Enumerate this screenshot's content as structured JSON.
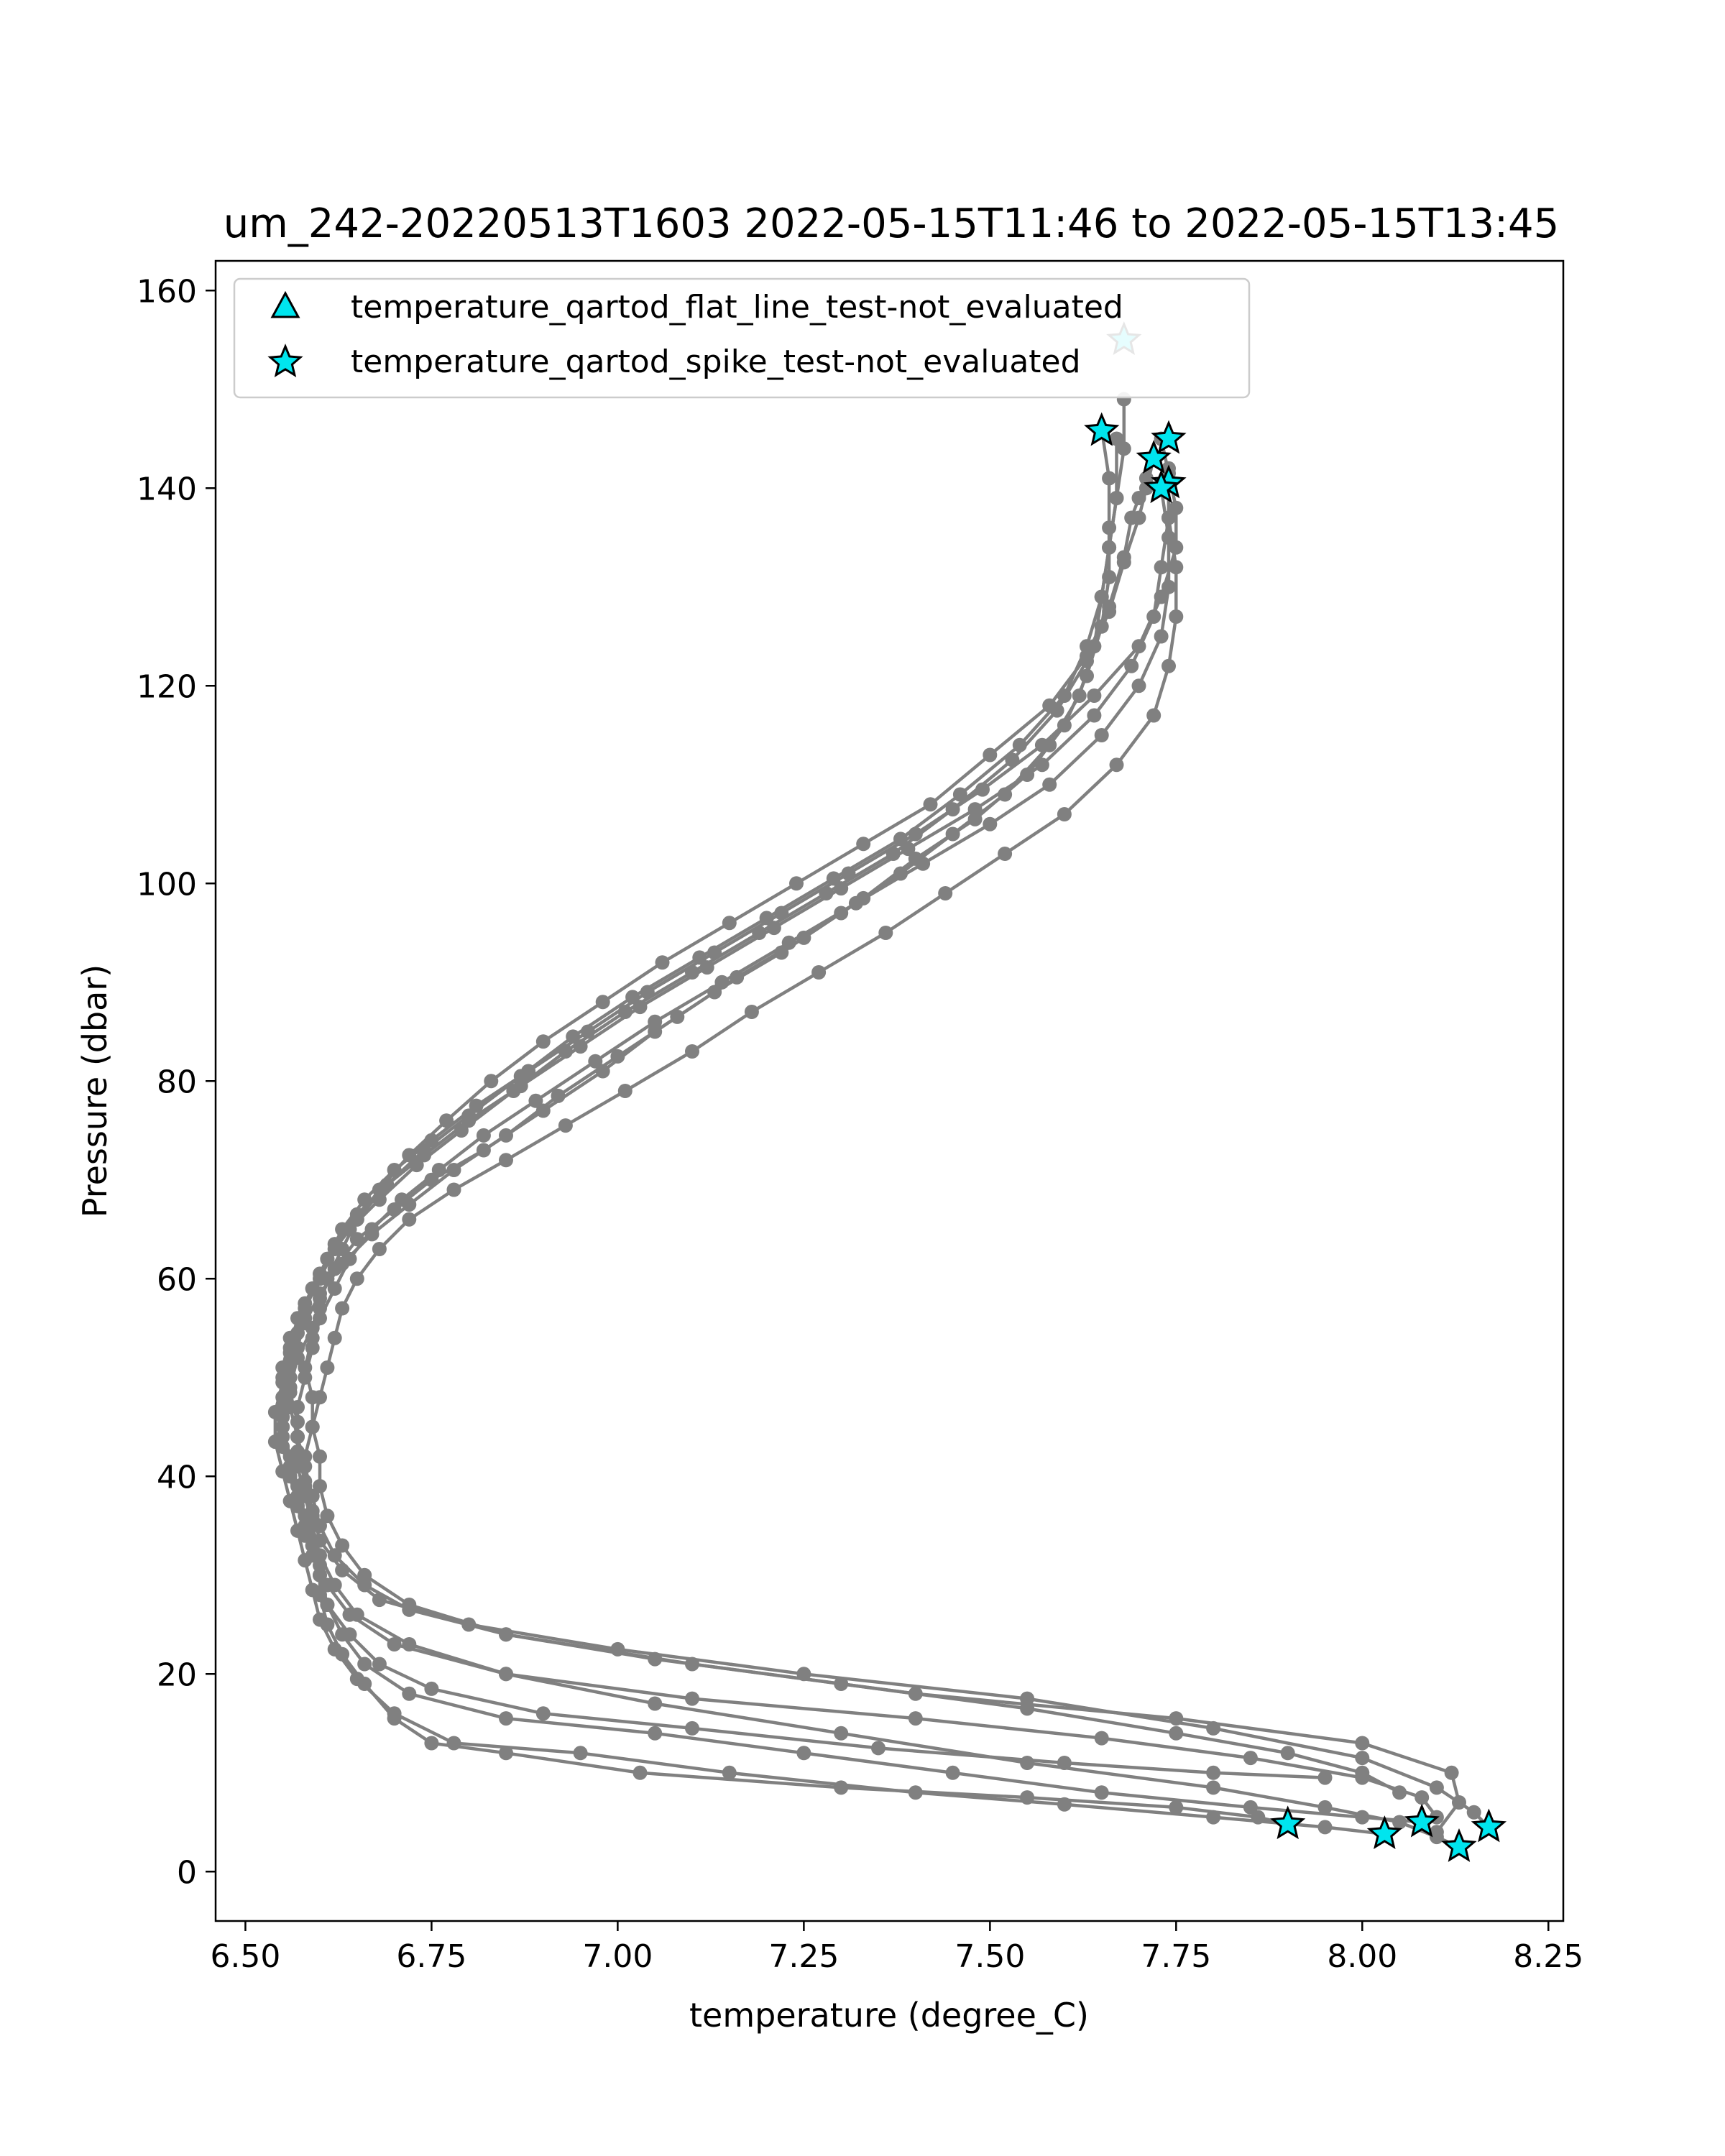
{
  "chart_data": {
    "type": "line",
    "title": "um_242-20220513T1603 2022-05-15T11:46 to 2022-05-15T13:45",
    "xlabel": "temperature (degree_C)",
    "ylabel": "Pressure (dbar)",
    "xlim": [
      6.46,
      8.27
    ],
    "ylim": [
      163,
      -5
    ],
    "y_inverted": true,
    "grid": false,
    "legend_position": "top-left",
    "xticks": [
      "6.50",
      "6.75",
      "7.00",
      "7.25",
      "7.50",
      "7.75",
      "8.00",
      "8.25"
    ],
    "xtick_values": [
      6.5,
      6.75,
      7.0,
      7.25,
      7.5,
      7.75,
      8.0,
      8.25
    ],
    "yticks": [
      "0",
      "20",
      "40",
      "60",
      "80",
      "100",
      "120",
      "140",
      "160"
    ],
    "ytick_values": [
      0,
      20,
      40,
      60,
      80,
      100,
      120,
      140,
      160
    ],
    "line_color": "#808080",
    "marker_color": "#00e5ee",
    "legend": [
      {
        "label": "temperature_qartod_flat_line_test-not_evaluated",
        "marker": "triangle"
      },
      {
        "label": "temperature_qartod_spike_test-not_evaluated",
        "marker": "star"
      }
    ],
    "series": [
      {
        "x": [
          7.9,
          7.86,
          7.75,
          7.55,
          7.3,
          7.03,
          6.85,
          6.75,
          6.7,
          6.66,
          6.63,
          6.61,
          6.6,
          6.6,
          6.58,
          6.57,
          6.56,
          6.55,
          6.55,
          6.56,
          6.57,
          6.59,
          6.6,
          6.62,
          6.65,
          6.7,
          6.75,
          6.82,
          6.9,
          6.98,
          7.05,
          7.13,
          7.22,
          7.3,
          7.38,
          7.45,
          7.52,
          7.58,
          7.62,
          7.64,
          7.65,
          7.66,
          7.67,
          7.68,
          7.68
        ],
        "y": [
          4.8,
          5.5,
          6.5,
          7.5,
          8.5,
          10.0,
          12.0,
          13.0,
          15.5,
          19.0,
          22.0,
          25.0,
          28.0,
          31.0,
          34.0,
          37.0,
          40.0,
          43.0,
          46.0,
          49.0,
          52.0,
          55.0,
          58.0,
          61.0,
          64.0,
          67.0,
          70.0,
          73.0,
          77.0,
          81.0,
          85.0,
          89.0,
          93.0,
          97.0,
          101.0,
          105.0,
          109.0,
          114.0,
          119.0,
          124.0,
          129.0,
          134.0,
          139.0,
          144.0,
          149.0
        ]
      },
      {
        "x": [
          8.03,
          7.95,
          7.8,
          7.6,
          7.4,
          7.15,
          6.95,
          6.78,
          6.7,
          6.65,
          6.62,
          6.6,
          6.59,
          6.58,
          6.57,
          6.56,
          6.55,
          6.54,
          6.54,
          6.55,
          6.56,
          6.58,
          6.6,
          6.63,
          6.67,
          6.72,
          6.78,
          6.85,
          6.92,
          7.0,
          7.08,
          7.16,
          7.25,
          7.33,
          7.4,
          7.48,
          7.55,
          7.6,
          7.63,
          7.65,
          7.66,
          7.66,
          7.66,
          7.65
        ],
        "y": [
          3.8,
          4.5,
          5.5,
          6.8,
          8.0,
          10.0,
          12.0,
          13.0,
          16.0,
          19.5,
          22.5,
          25.5,
          28.5,
          31.5,
          34.5,
          37.5,
          40.5,
          43.5,
          46.5,
          49.5,
          52.5,
          55.5,
          58.5,
          61.5,
          64.5,
          67.5,
          71.0,
          74.5,
          78.5,
          82.5,
          86.5,
          90.5,
          94.5,
          98.5,
          102.5,
          106.5,
          111.0,
          116.0,
          121.0,
          126.0,
          131.0,
          136.0,
          141.0,
          146.0
        ]
      },
      {
        "x": [
          8.08,
          8.0,
          7.85,
          7.65,
          7.45,
          7.25,
          7.05,
          6.85,
          6.72,
          6.66,
          6.63,
          6.61,
          6.6,
          6.59,
          6.59,
          6.58,
          6.58,
          6.59,
          6.6,
          6.61,
          6.62,
          6.63,
          6.65,
          6.68,
          6.72,
          6.78,
          6.85,
          6.93,
          7.01,
          7.1,
          7.18,
          7.27,
          7.36,
          7.44,
          7.52,
          7.6,
          7.67,
          7.72,
          7.74,
          7.75,
          7.75,
          7.74,
          7.74
        ],
        "y": [
          5.0,
          5.5,
          6.5,
          8.0,
          10.0,
          12.0,
          14.0,
          15.5,
          18.0,
          21.0,
          24.0,
          27.0,
          30.0,
          33.0,
          36.0,
          39.0,
          42.0,
          45.0,
          48.0,
          51.0,
          54.0,
          57.0,
          60.0,
          63.0,
          66.0,
          69.0,
          72.0,
          75.5,
          79.0,
          83.0,
          87.0,
          91.0,
          95.0,
          99.0,
          103.0,
          107.0,
          112.0,
          117.0,
          122.0,
          127.0,
          132.0,
          137.0,
          142.0
        ]
      },
      {
        "x": [
          8.13,
          8.1,
          8.05,
          7.95,
          7.8,
          7.55,
          7.3,
          7.05,
          6.85,
          6.72,
          6.65,
          6.62,
          6.6,
          6.59,
          6.58,
          6.57,
          6.57,
          6.57,
          6.58,
          6.59,
          6.6,
          6.62,
          6.64,
          6.67,
          6.71,
          6.76,
          6.82,
          6.89,
          6.97,
          7.05,
          7.14,
          7.23,
          7.32,
          7.41,
          7.5,
          7.58,
          7.65,
          7.7,
          7.73,
          7.74,
          7.74,
          7.73
        ],
        "y": [
          2.5,
          3.5,
          5.0,
          6.5,
          8.5,
          11.0,
          14.0,
          17.0,
          20.0,
          23.0,
          26.0,
          29.0,
          32.0,
          35.0,
          38.0,
          41.0,
          44.0,
          47.0,
          50.0,
          53.0,
          56.0,
          59.0,
          62.0,
          65.0,
          68.0,
          71.0,
          74.5,
          78.0,
          82.0,
          86.0,
          90.0,
          94.0,
          98.0,
          102.0,
          106.0,
          110.0,
          115.0,
          120.0,
          125.0,
          130.0,
          135.0,
          140.0
        ]
      },
      {
        "x": [
          8.17,
          8.15,
          8.1,
          8.0,
          7.8,
          7.55,
          7.25,
          7.0,
          6.8,
          6.68,
          6.63,
          6.6,
          6.59,
          6.58,
          6.57,
          6.57,
          6.56,
          6.56,
          6.57,
          6.58,
          6.6,
          6.62,
          6.65,
          6.69,
          6.74,
          6.8,
          6.87,
          6.95,
          7.03,
          7.12,
          7.21,
          7.3,
          7.39,
          7.48,
          7.57,
          7.64,
          7.69,
          7.72,
          7.73,
          7.74,
          7.74
        ],
        "y": [
          4.5,
          6.0,
          8.5,
          11.5,
          14.5,
          17.5,
          20.0,
          22.5,
          25.0,
          27.5,
          30.5,
          33.5,
          36.5,
          39.5,
          42.5,
          45.5,
          48.5,
          51.5,
          54.5,
          57.5,
          60.5,
          63.5,
          66.5,
          69.5,
          72.5,
          76.0,
          79.5,
          83.5,
          87.5,
          91.5,
          95.5,
          99.5,
          103.5,
          107.5,
          112.0,
          117.0,
          122.0,
          127.0,
          132.0,
          137.0,
          140.5
        ]
      },
      {
        "x": [
          8.1,
          8.13,
          8.12,
          8.0,
          7.75,
          7.4,
          7.1,
          6.85,
          6.72,
          6.66,
          6.63,
          6.61,
          6.6,
          6.6,
          6.59,
          6.59,
          6.58,
          6.59,
          6.6,
          6.61,
          6.63,
          6.65,
          6.68,
          6.72,
          6.77,
          6.83,
          6.9,
          6.98,
          7.06,
          7.15,
          7.24,
          7.33,
          7.42,
          7.5,
          7.58,
          7.63,
          7.66,
          7.68,
          7.69,
          7.7,
          7.71,
          7.72
        ],
        "y": [
          4.0,
          7.0,
          10.0,
          13.0,
          15.5,
          18.0,
          21.0,
          24.0,
          27.0,
          30.0,
          33.0,
          36.0,
          39.0,
          42.0,
          45.0,
          48.0,
          51.0,
          54.0,
          57.0,
          60.0,
          63.0,
          66.0,
          69.0,
          72.5,
          76.0,
          80.0,
          84.0,
          88.0,
          92.0,
          96.0,
          100.0,
          104.0,
          108.0,
          113.0,
          118.0,
          123.0,
          128.0,
          133.0,
          137.0,
          139.0,
          141.0,
          143.0
        ]
      },
      {
        "x": [
          7.95,
          7.8,
          7.6,
          7.35,
          7.1,
          6.9,
          6.75,
          6.68,
          6.64,
          6.61,
          6.6,
          6.59,
          6.58,
          6.57,
          6.56,
          6.55,
          6.55,
          6.55,
          6.56,
          6.58,
          6.6,
          6.62,
          6.65,
          6.69,
          6.74,
          6.8,
          6.87,
          6.94,
          7.02,
          7.11,
          7.2,
          7.29,
          7.38,
          7.46,
          7.54,
          7.6,
          7.63,
          7.65,
          7.66,
          7.67,
          7.67
        ],
        "y": [
          9.5,
          10.0,
          11.0,
          12.5,
          14.5,
          16.0,
          18.5,
          21.0,
          24.0,
          27.0,
          30.0,
          33.0,
          36.0,
          39.0,
          42.0,
          45.0,
          48.0,
          51.0,
          54.0,
          57.0,
          60.0,
          63.0,
          66.0,
          69.5,
          73.0,
          76.5,
          80.5,
          84.5,
          88.5,
          92.5,
          96.5,
          100.5,
          104.5,
          109.0,
          114.0,
          119.0,
          124.0,
          129.0,
          134.0,
          139.0,
          145.0
        ]
      },
      {
        "x": [
          8.05,
          8.0,
          7.9,
          7.75,
          7.55,
          7.3,
          7.05,
          6.85,
          6.72,
          6.66,
          6.62,
          6.6,
          6.59,
          6.58,
          6.57,
          6.56,
          6.56,
          6.57,
          6.58,
          6.59,
          6.61,
          6.63,
          6.66,
          6.7,
          6.75,
          6.81,
          6.88,
          6.96,
          7.04,
          7.13,
          7.22,
          7.31,
          7.4,
          7.49,
          7.57,
          7.64,
          7.7,
          7.73,
          7.75,
          7.75,
          7.74,
          7.73
        ],
        "y": [
          8.0,
          10.0,
          12.0,
          14.0,
          16.5,
          19.0,
          21.5,
          24.0,
          26.5,
          29.0,
          32.0,
          35.0,
          38.0,
          41.0,
          44.0,
          47.0,
          50.0,
          53.0,
          56.0,
          59.0,
          62.0,
          65.0,
          68.0,
          71.0,
          74.0,
          77.5,
          81.0,
          85.0,
          89.0,
          93.0,
          97.0,
          101.0,
          105.0,
          109.5,
          114.0,
          119.0,
          124.0,
          129.0,
          134.0,
          138.0,
          141.5,
          145.0
        ]
      },
      {
        "x": [
          8.1,
          8.08,
          8.0,
          7.85,
          7.65,
          7.4,
          7.1,
          6.85,
          6.7,
          6.64,
          6.61,
          6.59,
          6.58,
          6.57,
          6.56,
          6.55,
          6.55,
          6.55,
          6.56,
          6.57,
          6.59,
          6.61,
          6.64,
          6.68,
          6.73,
          6.79,
          6.86,
          6.93,
          7.01,
          7.1,
          7.19,
          7.28,
          7.37,
          7.45,
          7.53,
          7.59,
          7.63,
          7.66,
          7.68,
          7.7,
          7.71,
          7.72
        ],
        "y": [
          5.5,
          7.5,
          9.5,
          11.5,
          13.5,
          15.5,
          17.5,
          20.0,
          23.0,
          26.0,
          29.0,
          32.0,
          35.0,
          38.0,
          41.0,
          44.0,
          47.0,
          50.0,
          53.0,
          56.0,
          59.0,
          62.0,
          65.0,
          68.0,
          71.5,
          75.0,
          79.0,
          83.0,
          87.0,
          91.0,
          95.0,
          99.0,
          103.0,
          107.5,
          112.5,
          117.5,
          122.5,
          127.5,
          132.5,
          137.0,
          140.0,
          143.0
        ]
      }
    ],
    "flagged_points": {
      "marker": "star",
      "label": "temperature_qartod_spike_test-not_evaluated",
      "x": [
        7.9,
        8.03,
        8.08,
        8.13,
        8.17,
        7.74,
        7.73,
        7.72,
        7.74,
        7.65,
        7.68
      ],
      "y": [
        4.8,
        3.8,
        5.0,
        2.5,
        4.5,
        140.5,
        140.0,
        143.0,
        145.0,
        145.8,
        155.0
      ]
    }
  }
}
